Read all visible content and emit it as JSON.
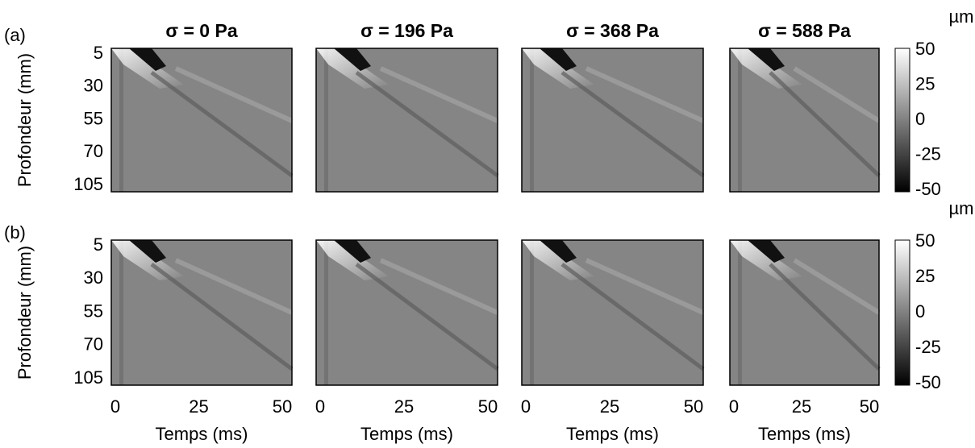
{
  "panel_labels": [
    "(a)",
    "(b)"
  ],
  "column_titles": [
    "σ = 0 Pa",
    "σ = 196 Pa",
    "σ = 368 Pa",
    "σ = 588 Pa"
  ],
  "y_label": "Profondeur (mm)",
  "y_ticks": [
    "5",
    "30",
    "55",
    "70",
    "105"
  ],
  "x_label": "Temps (ms)",
  "x_ticks": [
    "0",
    "25",
    "50"
  ],
  "colorbar": {
    "unit": "µm",
    "ticks": [
      "50",
      "25",
      "0",
      "-25",
      "-50"
    ]
  }
}
